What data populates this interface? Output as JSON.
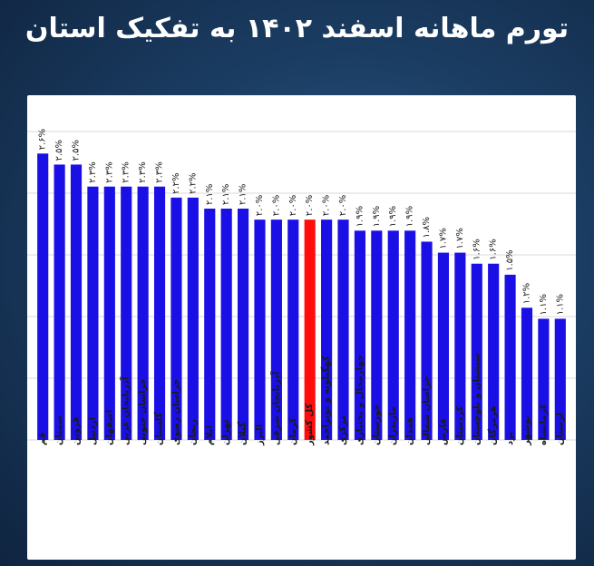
{
  "title": "تورم ماهانه اسفند ۱۴۰۲ به تفکیک استان",
  "colors": {
    "bar": "#1a10e6",
    "highlight": "#ff0d0d",
    "grid": "#d9d9d9",
    "text": "#1a1a1a"
  },
  "chart_data": {
    "type": "bar",
    "categories": [
      "قم",
      "سمنان",
      "قزوین",
      "اردبیل",
      "اصفهان",
      "آذربایجان غربی",
      "خراسان جنوبی",
      "گلستان",
      "خراسان رضوی",
      "زنجان",
      "ایلام",
      "تهران",
      "گیلان",
      "البرز",
      "آذربایجان شرقی",
      "کرمان",
      "کل کشور",
      "کهگیلویه و بویراحمد",
      "مرکزی",
      "چهارمحال و بختیاری",
      "خوزستان",
      "مازندران",
      "همدان",
      "خراسان شمالی",
      "فارس",
      "کردستان",
      "سیستان و بلوچستان",
      "هرمزگان",
      "یزد",
      "بوشهر",
      "کرمانشاه",
      "لرستان"
    ],
    "values": [
      2.6,
      2.5,
      2.5,
      2.3,
      2.3,
      2.3,
      2.3,
      2.3,
      2.2,
      2.2,
      2.1,
      2.1,
      2.1,
      2.0,
      2.0,
      2.0,
      2.0,
      2.0,
      2.0,
      1.9,
      1.9,
      1.9,
      1.9,
      1.8,
      1.7,
      1.7,
      1.6,
      1.6,
      1.5,
      1.2,
      1.1,
      1.1
    ],
    "labels": [
      "۲.۶%",
      "۲.۵%",
      "۲.۵%",
      "۲.۳%",
      "۲.۳%",
      "۲.۳%",
      "۲.۳%",
      "۲.۳%",
      "۲.۲%",
      "۲.۲%",
      "۲.۱%",
      "۲.۱%",
      "۲.۱%",
      "۲.۰%",
      "۲.۰%",
      "۲.۰%",
      "۲.۰%",
      "۲.۰%",
      "۲.۰%",
      "۱.۹%",
      "۱.۹%",
      "۱.۹%",
      "۱.۹%",
      "۱.۸%",
      "۱.۷%",
      "۱.۷%",
      "۱.۶%",
      "۱.۶%",
      "۱.۵%",
      "۱.۲%",
      "۱.۱%",
      "۱.۱%"
    ],
    "highlight_index": 16,
    "ylim": [
      0,
      2.8
    ],
    "grid": true
  }
}
